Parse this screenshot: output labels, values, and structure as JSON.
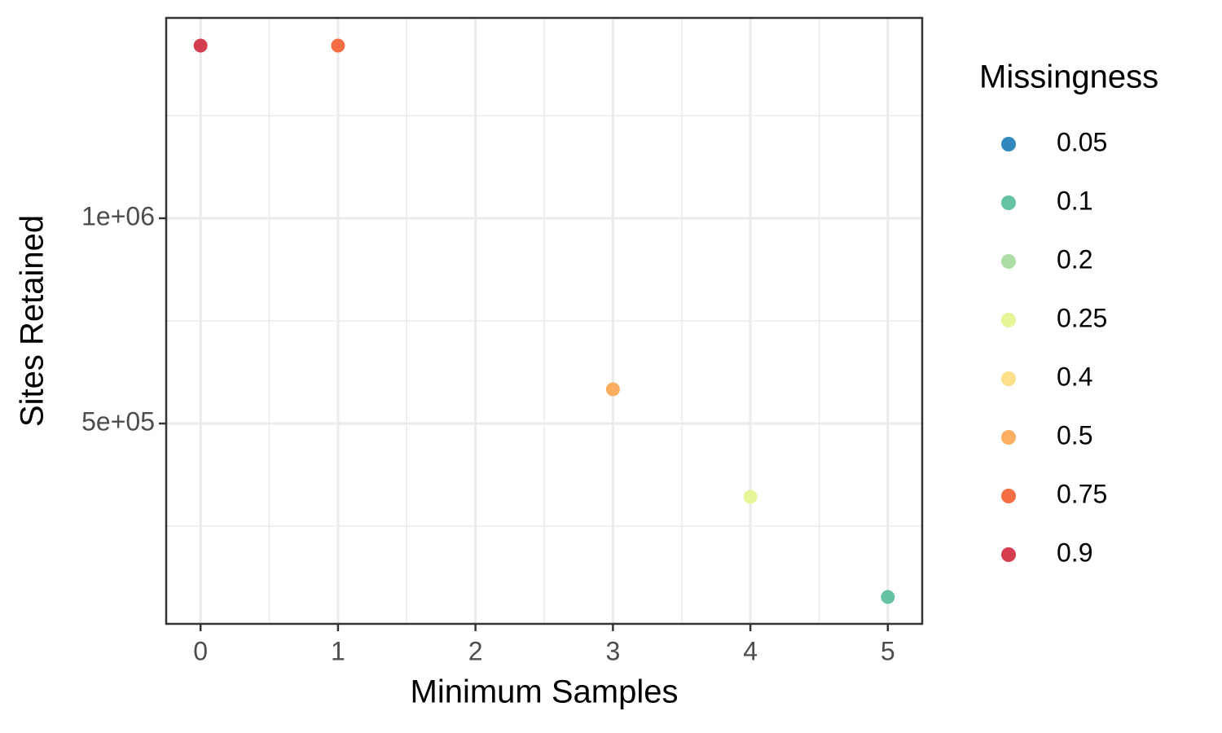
{
  "chart_data": {
    "type": "scatter",
    "x_label": "Minimum Samples",
    "y_label": "Sites Retained",
    "legend_title": "Missingness",
    "xlim": [
      -0.25,
      5.25
    ],
    "xticks": [
      0,
      1,
      2,
      3,
      4,
      5
    ],
    "ylim": [
      11900,
      1488100
    ],
    "yticks": [
      {
        "value": 500000,
        "label": "5e+05"
      },
      {
        "value": 1000000,
        "label": "1e+06"
      }
    ],
    "grid": true,
    "legend_position": "right",
    "series": [
      {
        "name": "0.05",
        "color": "#3288bd",
        "x": [],
        "values": []
      },
      {
        "name": "0.1",
        "color": "#66c2a5",
        "x": [
          5
        ],
        "values": [
          77400
        ]
      },
      {
        "name": "0.2",
        "color": "#abdda4",
        "x": [],
        "values": []
      },
      {
        "name": "0.25",
        "color": "#e6f598",
        "x": [
          4
        ],
        "values": [
          321500
        ]
      },
      {
        "name": "0.4",
        "color": "#fee08b",
        "x": [],
        "values": []
      },
      {
        "name": "0.5",
        "color": "#fdae61",
        "x": [
          3
        ],
        "values": [
          583300
        ]
      },
      {
        "name": "0.75",
        "color": "#f46d43",
        "x": [
          1
        ],
        "values": [
          1420600
        ]
      },
      {
        "name": "0.9",
        "color": "#d53e4f",
        "x": [
          0
        ],
        "values": [
          1420600
        ]
      }
    ]
  }
}
